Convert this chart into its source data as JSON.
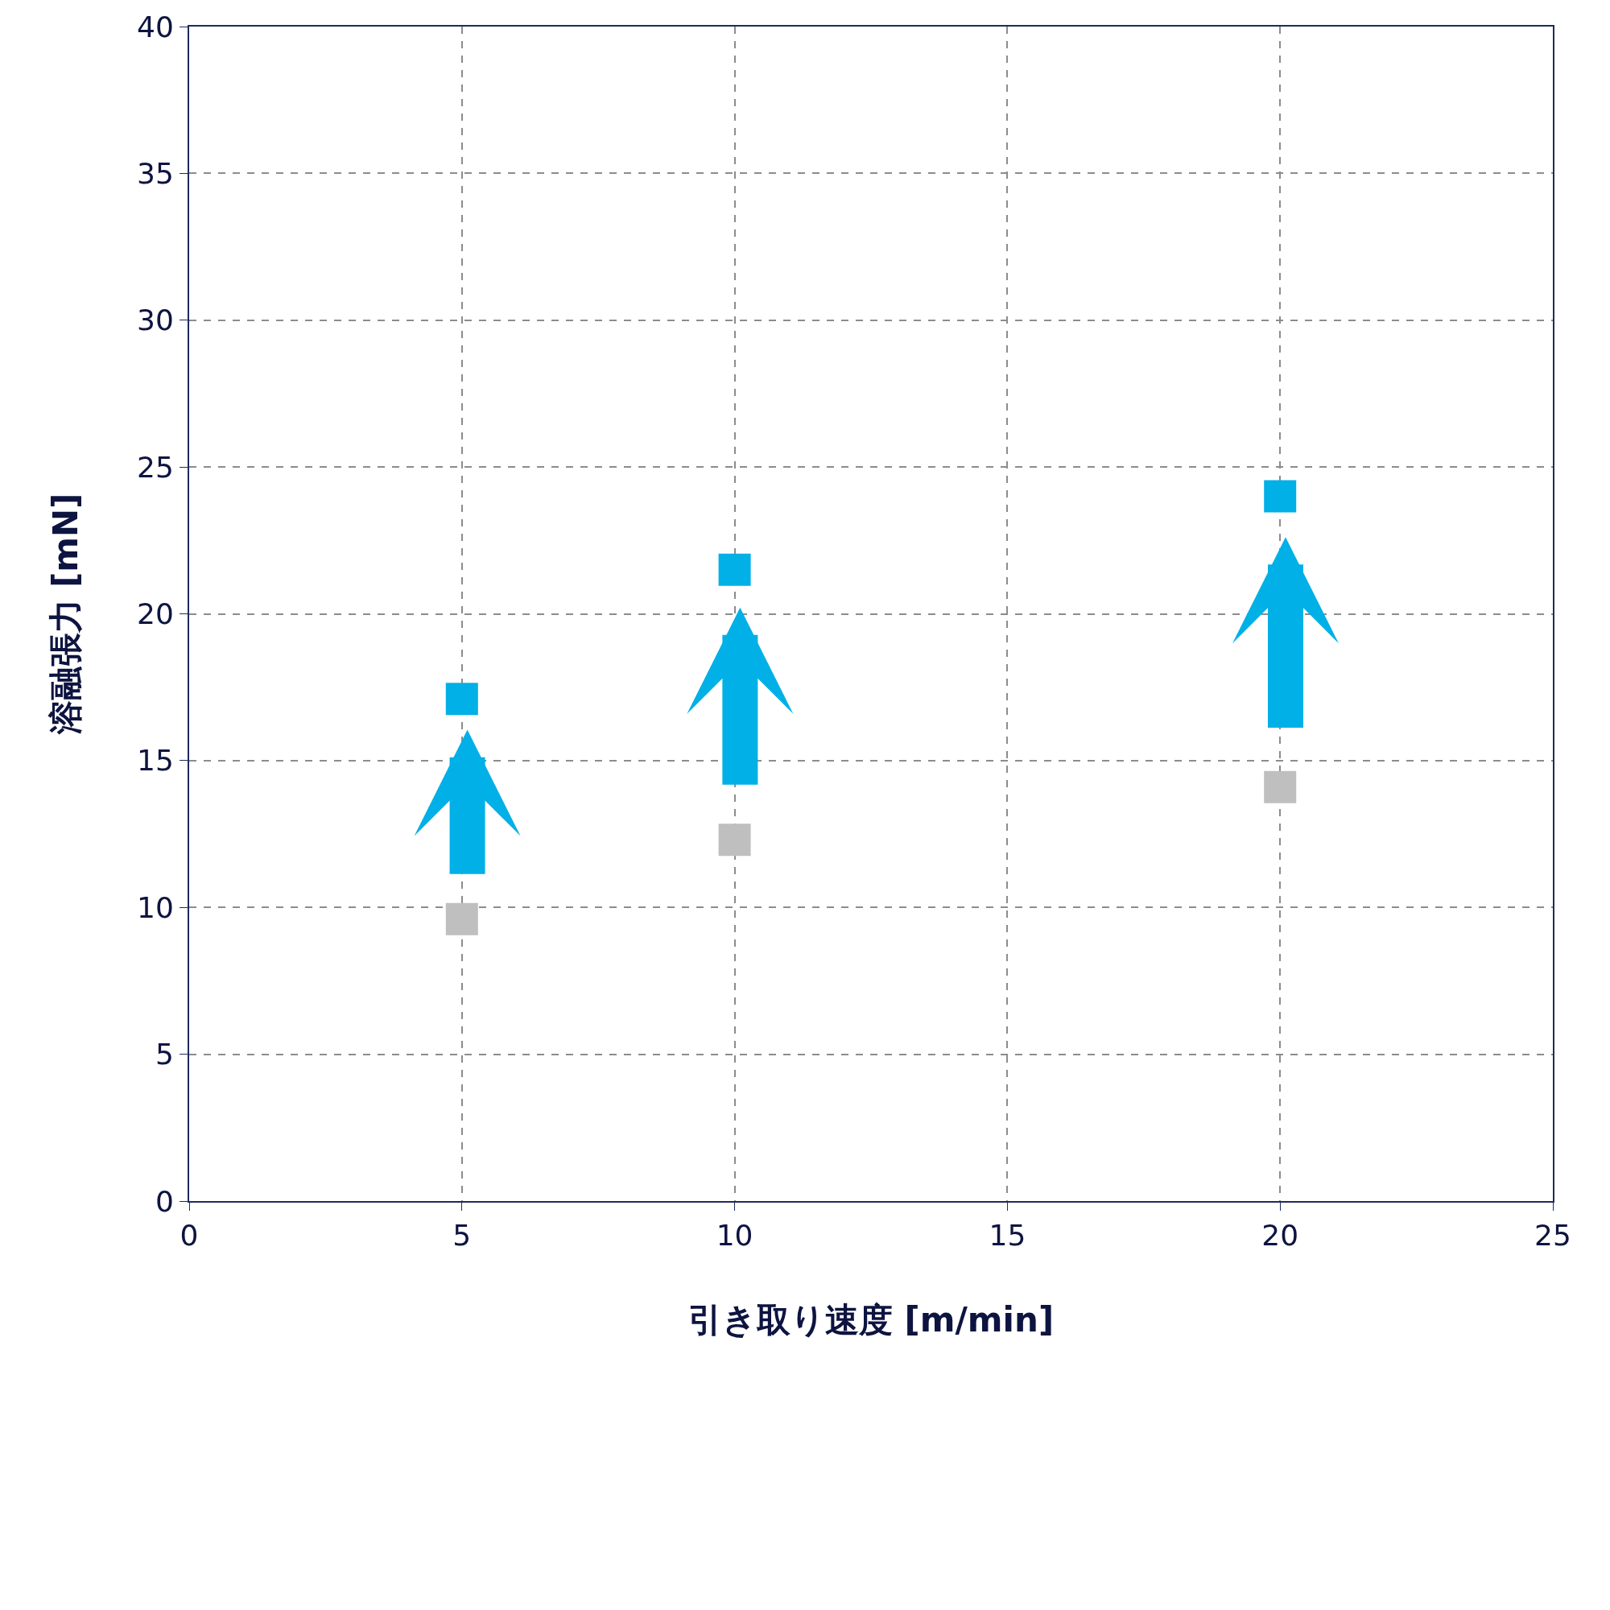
{
  "chart_data": {
    "type": "scatter",
    "xlabel": "引き取り速度 [m/min]",
    "ylabel": "溶融張力 [mN]",
    "x": [
      5,
      10,
      20
    ],
    "series": [
      {
        "color": "#bfbfbf",
        "values": [
          9.6,
          12.3,
          14.1
        ]
      },
      {
        "color": "#00b0e6",
        "values": [
          17.1,
          21.5,
          24.0
        ]
      }
    ],
    "xlim": [
      0,
      25
    ],
    "xticks": [
      0,
      5,
      10,
      15,
      20,
      25
    ],
    "ylim": [
      0,
      40
    ],
    "yticks": [
      0,
      5,
      10,
      15,
      20,
      25,
      30,
      35,
      40
    ],
    "grid": true,
    "marker": "square"
  }
}
